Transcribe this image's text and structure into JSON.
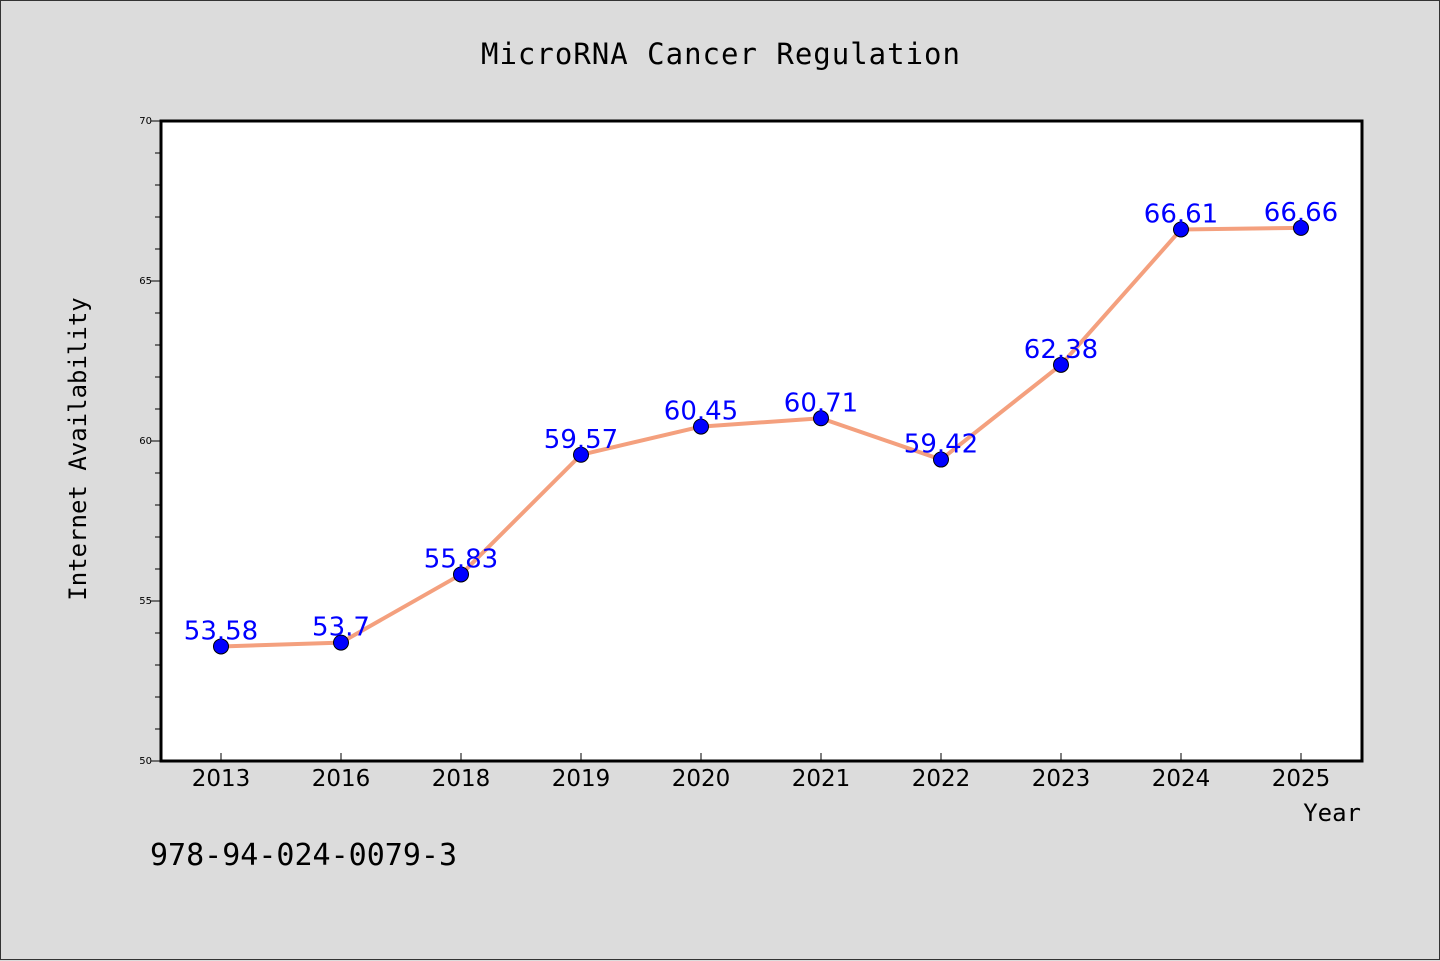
{
  "chart_data": {
    "type": "line",
    "title": "MicroRNA Cancer Regulation",
    "xlabel": "Year",
    "ylabel": "Internet Availability",
    "categories": [
      "2013",
      "2016",
      "2018",
      "2019",
      "2020",
      "2021",
      "2022",
      "2023",
      "2024",
      "2025"
    ],
    "values": [
      53.58,
      53.7,
      55.83,
      59.57,
      60.45,
      60.71,
      59.42,
      62.38,
      66.61,
      66.66
    ],
    "data_labels": [
      "53.58",
      "53.7",
      "55.83",
      "59.57",
      "60.45",
      "60.71",
      "59.42",
      "62.38",
      "66.61",
      "66.66"
    ],
    "ylim": [
      50,
      70
    ],
    "yticks": [
      50,
      55,
      60,
      65,
      70
    ],
    "ytick_labels": [
      "50",
      "55",
      "60",
      "65",
      "70"
    ],
    "grid": false,
    "legend": "none",
    "line_color": "#f4a07e",
    "marker_color": "#0000ff",
    "label_color": "#0000ff"
  },
  "footer": {
    "isbn": "978-94-024-0079-3"
  }
}
